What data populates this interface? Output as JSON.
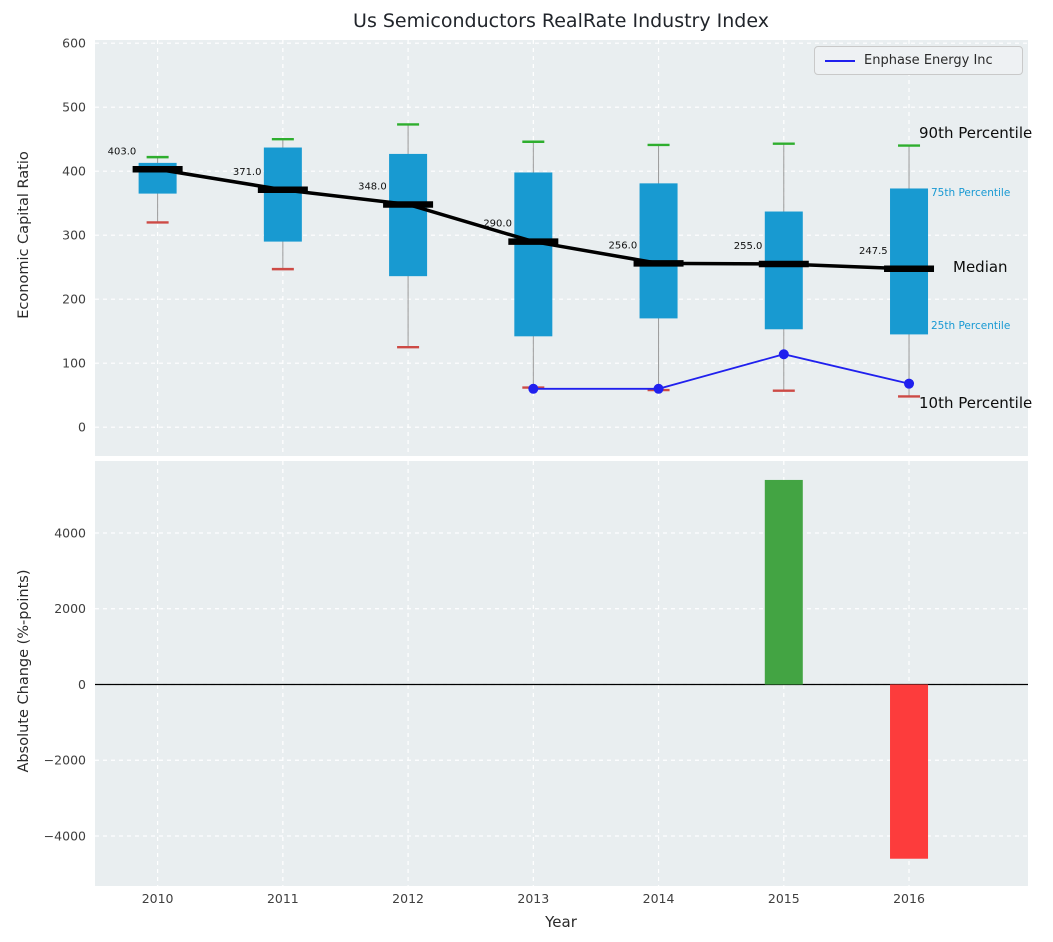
{
  "figure": {
    "title": "Us Semiconductors RealRate Industry Index",
    "xlabel": "Year"
  },
  "legend": {
    "label": "Enphase Energy Inc"
  },
  "colors": {
    "panel_bg": "#e9eef0",
    "grid": "#ffffff",
    "box_fill": "#189ad1",
    "p90_cap": "#2eae2e",
    "p10_cap": "#cd4a45",
    "median": "#000000",
    "company_line": "#2020ee",
    "bar_positive": "#43a443",
    "bar_negative": "#fd3c3c",
    "annotation_blue": "#1899d3",
    "tick_text": "#3f3f3f",
    "whisker": "#999999"
  },
  "chart_data": [
    {
      "type": "boxplot",
      "title": "Us Semiconductors RealRate Industry Index",
      "ylabel": "Economic Capital Ratio",
      "categories": [
        2010,
        2011,
        2012,
        2013,
        2014,
        2015,
        2016
      ],
      "yticks": [
        0,
        100,
        200,
        300,
        400,
        500,
        600
      ],
      "ylim": [
        -45,
        605
      ],
      "grid": true,
      "legend_position": "upper right",
      "series": [
        {
          "name": "90th Percentile",
          "values": [
            422,
            450,
            473,
            446,
            441,
            443,
            440
          ]
        },
        {
          "name": "75th Percentile",
          "values": [
            413,
            437,
            427,
            398,
            381,
            337,
            373
          ]
        },
        {
          "name": "Median",
          "values": [
            403.0,
            371.0,
            348.0,
            290.0,
            256.0,
            255.0,
            247.5
          ]
        },
        {
          "name": "25th Percentile",
          "values": [
            365,
            290,
            236,
            142,
            170,
            153,
            145
          ]
        },
        {
          "name": "10th Percentile",
          "values": [
            320,
            247,
            125,
            62,
            58,
            57,
            48
          ]
        },
        {
          "name": "Enphase Energy Inc",
          "x": [
            2013,
            2014,
            2015,
            2016
          ],
          "values": [
            60,
            60,
            114,
            68
          ]
        }
      ],
      "median_labels": [
        "403.0",
        "371.0",
        "348.0",
        "290.0",
        "256.0",
        "255.0",
        "247.5"
      ],
      "right_annotations": [
        "90th Percentile",
        "75th Percentile",
        "Median",
        "25th Percentile",
        "10th Percentile"
      ]
    },
    {
      "type": "bar",
      "ylabel": "Absolute Change (%-points)",
      "xlabel": "Year",
      "categories": [
        2010,
        2011,
        2012,
        2013,
        2014,
        2015,
        2016
      ],
      "values": [
        null,
        null,
        null,
        null,
        null,
        5400,
        -4600
      ],
      "yticks": [
        -4000,
        -2000,
        0,
        2000,
        4000
      ],
      "ylim": [
        -5320,
        5900
      ],
      "grid": true
    }
  ]
}
